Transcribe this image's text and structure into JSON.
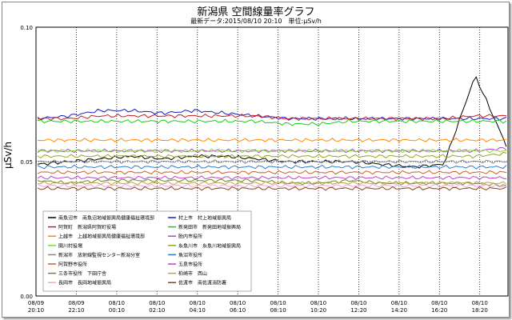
{
  "header": {
    "title": "新潟県 空間線量率グラフ",
    "subtitle": "最新データ:2015/08/10 20:10　単位:μSv/h"
  },
  "chart_data": {
    "type": "line",
    "title": "新潟県 空間線量率グラフ",
    "ylabel": "μSv/h",
    "xlabel": "",
    "ylim": [
      0,
      0.1
    ],
    "y_ticks": [
      "0.00",
      "0.05",
      "0.10"
    ],
    "x_ticks": [
      {
        "date": "08/09",
        "time": "20:10"
      },
      {
        "date": "08/09",
        "time": "22:10"
      },
      {
        "date": "08/10",
        "time": "00:10"
      },
      {
        "date": "08/10",
        "time": "02:10"
      },
      {
        "date": "08/10",
        "time": "04:10"
      },
      {
        "date": "08/10",
        "time": "06:10"
      },
      {
        "date": "08/10",
        "time": "08:10"
      },
      {
        "date": "08/10",
        "time": "10:20"
      },
      {
        "date": "08/10",
        "time": "12:20"
      },
      {
        "date": "08/10",
        "time": "14:20"
      },
      {
        "date": "08/10",
        "time": "16:20"
      },
      {
        "date": "08/10",
        "time": "18:20"
      }
    ],
    "grid": true,
    "legend_position": "bottom-left",
    "series": [
      {
        "name": "南魚沼市　南魚沼地域振興局健康福祉環境部",
        "color": "#000000",
        "values": [
          0.049,
          0.05,
          0.051,
          0.052,
          0.051,
          0.052,
          0.052,
          0.051,
          0.05,
          0.05,
          0.05,
          0.049,
          0.048,
          0.049,
          0.082,
          0.056
        ]
      },
      {
        "name": "村上市　村上地域振興局",
        "color": "#1a1acc",
        "values": [
          0.066,
          0.067,
          0.069,
          0.069,
          0.068,
          0.069,
          0.068,
          0.067,
          0.066,
          0.066,
          0.066,
          0.066,
          0.066,
          0.066,
          0.066,
          0.066
        ]
      },
      {
        "name": "阿賀町　新潟県阿賀町役場",
        "color": "#cc1a1a",
        "values": [
          0.066,
          0.066,
          0.067,
          0.067,
          0.067,
          0.067,
          0.067,
          0.067,
          0.066,
          0.066,
          0.066,
          0.066,
          0.066,
          0.066,
          0.067,
          0.067
        ]
      },
      {
        "name": "新発田市　新発田地域振興局",
        "color": "#1acc1a",
        "values": [
          0.065,
          0.065,
          0.065,
          0.065,
          0.065,
          0.065,
          0.065,
          0.065,
          0.064,
          0.064,
          0.065,
          0.065,
          0.065,
          0.065,
          0.065,
          0.065
        ]
      },
      {
        "name": "上越市　上越地域振興局健康福祉環境部",
        "color": "#ff8800",
        "values": [
          0.058,
          0.058,
          0.058,
          0.058,
          0.058,
          0.058,
          0.058,
          0.058,
          0.058,
          0.058,
          0.058,
          0.058,
          0.058,
          0.058,
          0.058,
          0.058
        ]
      },
      {
        "name": "胎内市役所",
        "color": "#b044c8",
        "values": [
          0.054,
          0.054,
          0.054,
          0.054,
          0.054,
          0.054,
          0.054,
          0.054,
          0.054,
          0.054,
          0.054,
          0.054,
          0.054,
          0.054,
          0.054,
          0.055
        ]
      },
      {
        "name": "関川村役場",
        "color": "#7fdd33",
        "values": [
          0.054,
          0.054,
          0.054,
          0.054,
          0.054,
          0.054,
          0.054,
          0.054,
          0.054,
          0.054,
          0.054,
          0.054,
          0.054,
          0.054,
          0.054,
          0.054
        ]
      },
      {
        "name": "糸魚川市　糸魚川地域振興局",
        "color": "#a0a020",
        "values": [
          0.052,
          0.052,
          0.052,
          0.052,
          0.052,
          0.052,
          0.052,
          0.052,
          0.052,
          0.052,
          0.052,
          0.052,
          0.052,
          0.052,
          0.052,
          0.053
        ]
      },
      {
        "name": "新潟市　放射線監視センター新潟分室",
        "color": "#8a8a8a",
        "values": [
          0.05,
          0.05,
          0.05,
          0.05,
          0.05,
          0.05,
          0.05,
          0.05,
          0.05,
          0.05,
          0.05,
          0.05,
          0.05,
          0.05,
          0.05,
          0.05
        ]
      },
      {
        "name": "魚沼市役所",
        "color": "#2a7ad6",
        "values": [
          0.048,
          0.048,
          0.048,
          0.048,
          0.048,
          0.048,
          0.048,
          0.048,
          0.048,
          0.048,
          0.048,
          0.048,
          0.048,
          0.048,
          0.048,
          0.048
        ]
      },
      {
        "name": "阿賀野市役所",
        "color": "#c8602a",
        "values": [
          0.046,
          0.046,
          0.046,
          0.046,
          0.046,
          0.046,
          0.046,
          0.046,
          0.046,
          0.046,
          0.046,
          0.046,
          0.046,
          0.046,
          0.046,
          0.046
        ]
      },
      {
        "name": "五泉市役所",
        "color": "#c040c0",
        "values": [
          0.044,
          0.044,
          0.044,
          0.044,
          0.044,
          0.044,
          0.044,
          0.044,
          0.044,
          0.044,
          0.044,
          0.044,
          0.044,
          0.044,
          0.044,
          0.044
        ]
      },
      {
        "name": "三条市役所　下田庁舎",
        "color": "#6b8a2a",
        "values": [
          0.043,
          0.042,
          0.043,
          0.043,
          0.043,
          0.043,
          0.043,
          0.043,
          0.042,
          0.042,
          0.043,
          0.042,
          0.042,
          0.042,
          0.042,
          0.041
        ]
      },
      {
        "name": "柏崎市　西山",
        "color": "#c8a040",
        "values": [
          0.042,
          0.042,
          0.042,
          0.042,
          0.042,
          0.042,
          0.042,
          0.042,
          0.042,
          0.042,
          0.042,
          0.042,
          0.042,
          0.042,
          0.042,
          0.042
        ]
      },
      {
        "name": "長岡市　長岡地域振興局",
        "color": "#f2a0e0",
        "values": [
          0.041,
          0.041,
          0.041,
          0.041,
          0.041,
          0.041,
          0.041,
          0.041,
          0.041,
          0.041,
          0.041,
          0.041,
          0.041,
          0.041,
          0.041,
          0.041
        ]
      },
      {
        "name": "佐渡市　南佐渡消防署",
        "color": "#884422",
        "values": [
          0.04,
          0.04,
          0.04,
          0.04,
          0.04,
          0.04,
          0.04,
          0.04,
          0.04,
          0.04,
          0.04,
          0.04,
          0.04,
          0.04,
          0.04,
          0.04
        ]
      }
    ]
  }
}
